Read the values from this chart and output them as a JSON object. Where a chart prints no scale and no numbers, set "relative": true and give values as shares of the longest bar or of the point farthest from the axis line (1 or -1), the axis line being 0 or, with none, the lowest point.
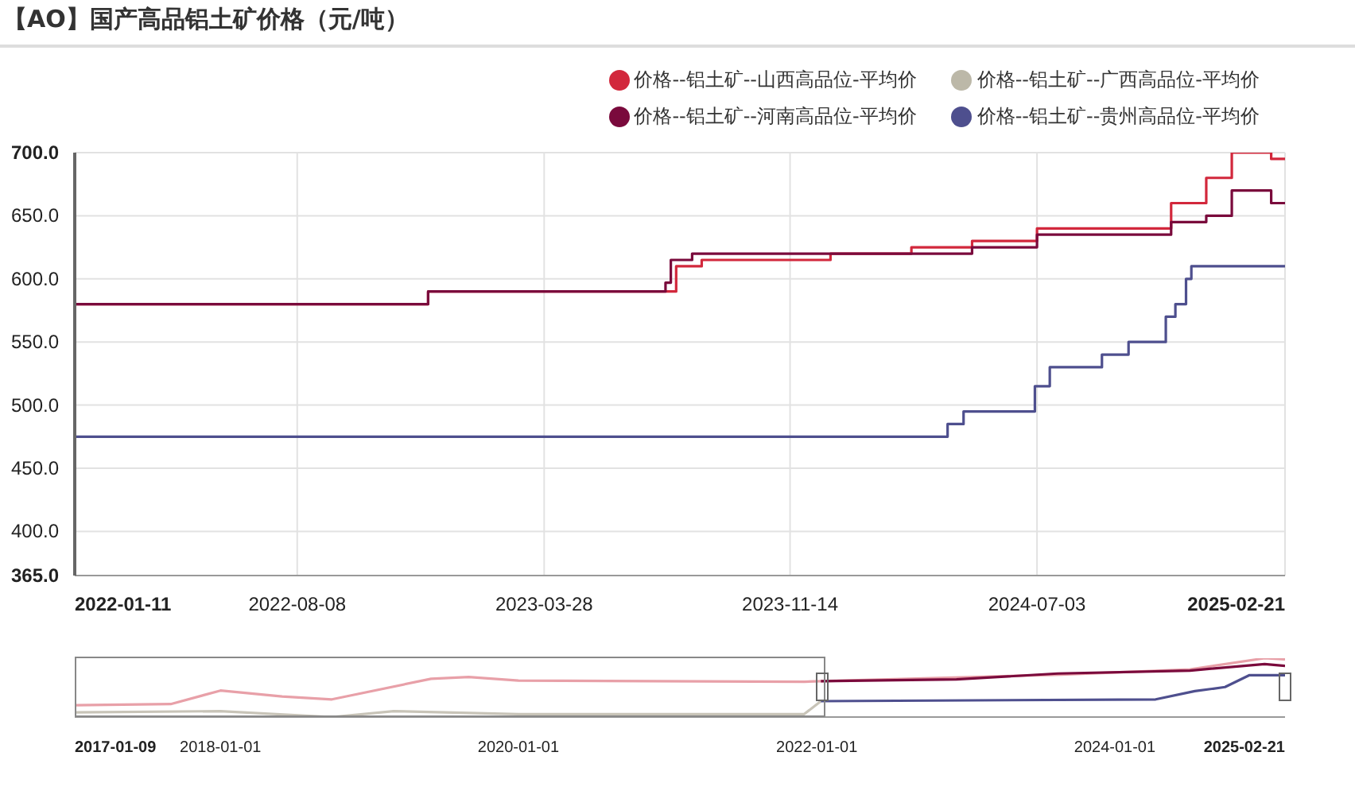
{
  "chart_data": [
    {
      "type": "step",
      "title": "【AO】国产高品铝土矿价格（元/吨）",
      "xlim": [
        "2022-01-11",
        "2025-02-21"
      ],
      "xticks": [
        {
          "value": "2022-01-11",
          "label": "2022-01-11"
        },
        {
          "value": "2022-08-08",
          "label": "2022-08-08"
        },
        {
          "value": "2023-03-28",
          "label": "2023-03-28"
        },
        {
          "value": "2023-11-14",
          "label": "2023-11-14"
        },
        {
          "value": "2024-07-03",
          "label": "2024-07-03"
        },
        {
          "value": "2025-02-21",
          "label": "2025-02-21"
        }
      ],
      "ylim": [
        365,
        700
      ],
      "yticks": [
        {
          "value": 365,
          "label": "365.0"
        },
        {
          "value": 400,
          "label": "400.0"
        },
        {
          "value": 450,
          "label": "450.0"
        },
        {
          "value": 500,
          "label": "500.0"
        },
        {
          "value": 550,
          "label": "550.0"
        },
        {
          "value": 600,
          "label": "600.0"
        },
        {
          "value": 650,
          "label": "650.0"
        },
        {
          "value": 700,
          "label": "700.0"
        }
      ],
      "grid": true,
      "legend": "top right",
      "marker": "none",
      "series": [
        {
          "name": "价格--铝土矿--山西高品位-平均价",
          "color": "#d2283c",
          "x": [
            "2022-01-11",
            "2022-12-09",
            "2023-07-30",
            "2023-08-23",
            "2023-12-22",
            "2024-03-07",
            "2024-05-03",
            "2024-07-03",
            "2024-11-06",
            "2024-12-09",
            "2025-01-02",
            "2025-02-08",
            "2025-02-21"
          ],
          "values": [
            580,
            590,
            610,
            615,
            620,
            625,
            630,
            640,
            660,
            680,
            700,
            695,
            695
          ]
        },
        {
          "name": "价格--铝土矿--广西高品位-平均价",
          "color": "#bcb8a8"
        },
        {
          "name": "价格--铝土矿--河南高品位-平均价",
          "color": "#7a0a3c",
          "x": [
            "2022-01-11",
            "2022-12-09",
            "2023-07-20",
            "2023-07-25",
            "2023-08-14",
            "2024-05-03",
            "2024-07-03",
            "2024-11-06",
            "2024-12-09",
            "2025-01-02",
            "2025-02-08",
            "2025-02-21"
          ],
          "values": [
            580,
            590,
            597,
            615,
            620,
            625,
            635,
            645,
            650,
            670,
            660,
            660
          ]
        },
        {
          "name": "价格--铝土矿--贵州高品位-平均价",
          "color": "#4e4f8e",
          "x": [
            "2022-01-11",
            "2024-04-10",
            "2024-04-25",
            "2024-07-01",
            "2024-07-15",
            "2024-09-02",
            "2024-09-27",
            "2024-11-01",
            "2024-11-10",
            "2024-11-20",
            "2024-11-25",
            "2025-02-21"
          ],
          "values": [
            475,
            485,
            495,
            515,
            530,
            540,
            550,
            570,
            580,
            600,
            610,
            610
          ]
        }
      ]
    },
    {
      "type": "line",
      "relative": true,
      "tick_labels": "x",
      "xlim": [
        "2017-01-09",
        "2025-02-21"
      ],
      "xticks": [
        {
          "value": "2017-01-09",
          "label": "2017-01-09"
        },
        {
          "value": "2018-01-01",
          "label": "2018-01-01"
        },
        {
          "value": "2020-01-01",
          "label": "2020-01-01"
        },
        {
          "value": "2022-01-01",
          "label": "2022-01-01"
        },
        {
          "value": "2024-01-01",
          "label": "2024-01-01"
        },
        {
          "value": "2025-02-21",
          "label": "2025-02-21"
        }
      ],
      "series": [
        {
          "color": "#e8a0a8",
          "x": [
            "2017-01-09",
            "2017-09-01",
            "2018-01-01",
            "2018-06-01",
            "2018-10-01",
            "2019-06-01",
            "2019-09-01",
            "2020-01-01",
            "2021-12-01",
            "2022-01-11",
            "2023-08-23",
            "2024-07-03",
            "2025-01-02",
            "2025-02-21"
          ],
          "values": [
            0.2,
            0.22,
            0.45,
            0.35,
            0.3,
            0.65,
            0.68,
            0.62,
            0.6,
            0.61,
            0.72,
            0.81,
            1,
            0.98
          ]
        },
        {
          "color": "#c8c4b8",
          "x": [
            "2017-01-09",
            "2018-01-01",
            "2018-10-01",
            "2019-03-01",
            "2020-01-01",
            "2021-12-01",
            "2022-01-11"
          ],
          "values": [
            0.08,
            0.1,
            0,
            0.1,
            0.05,
            0.05,
            0.27
          ]
        },
        {
          "color": "#7a0a3c",
          "x": [
            "2022-01-11",
            "2022-12-09",
            "2023-08-14",
            "2024-07-03",
            "2025-01-02",
            "2025-02-21"
          ],
          "values": [
            0.61,
            0.64,
            0.74,
            0.79,
            0.9,
            0.87
          ]
        },
        {
          "color": "#4e4f8e",
          "x": [
            "2022-01-11",
            "2024-04-10",
            "2024-07-15",
            "2024-09-27",
            "2024-11-25",
            "2025-02-21"
          ],
          "values": [
            0.27,
            0.3,
            0.44,
            0.51,
            0.71,
            0.71
          ]
        }
      ]
    }
  ]
}
